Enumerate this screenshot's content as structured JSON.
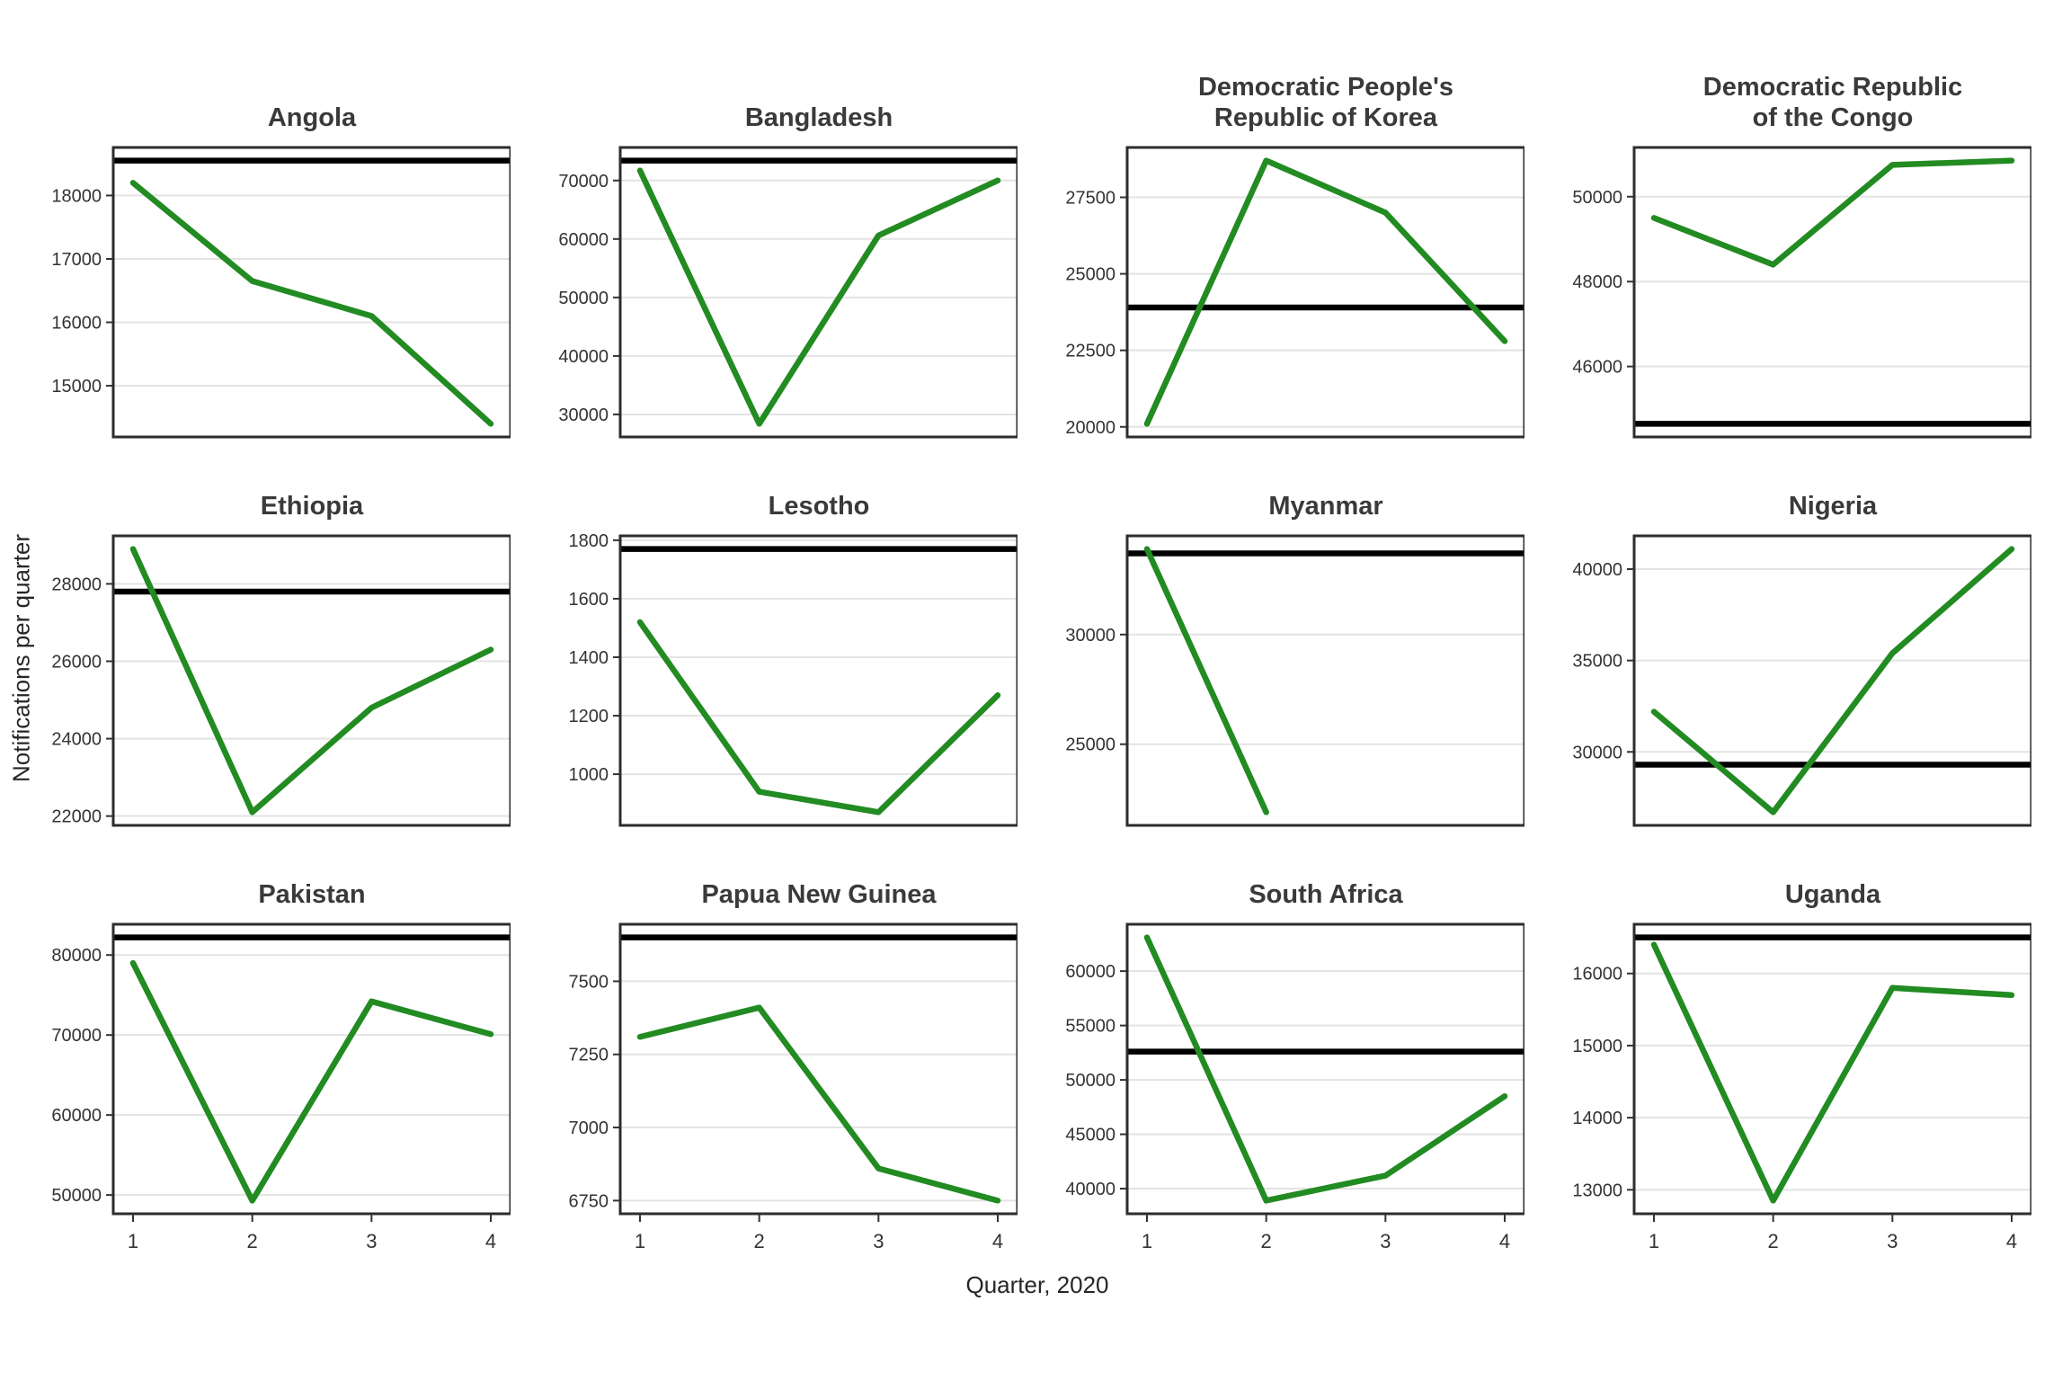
{
  "axes": {
    "x_title": "Quarter, 2020",
    "y_title": "Notifications per quarter",
    "x_ticks": [
      "1",
      "2",
      "3",
      "4"
    ]
  },
  "style": {
    "line_color": "#228B22",
    "reference_line_color": "#000000",
    "gridline_color": "#e3e3e3",
    "panel_border_color": "#2d2d2d",
    "title_color": "#3a3a3a",
    "tick_label_color": "#333333",
    "axis_title_color": "#262626",
    "background_color": "#ffffff"
  },
  "chart_data": {
    "type": "line",
    "xlabel": "Quarter, 2020",
    "ylabel": "Notifications per quarter",
    "x": [
      1,
      2,
      3,
      4
    ],
    "x_tick_labels": [
      "1",
      "2",
      "3",
      "4"
    ],
    "grid": "horizontal-only",
    "facets": [
      {
        "name": "Angola",
        "title_lines": [
          "Angola"
        ],
        "values": [
          18200,
          16650,
          16100,
          14400
        ],
        "reference": 18550,
        "y_ticks": [
          15000,
          16000,
          17000,
          18000
        ]
      },
      {
        "name": "Bangladesh",
        "title_lines": [
          "Bangladesh"
        ],
        "values": [
          71700,
          28400,
          60600,
          70000
        ],
        "reference": 73400,
        "y_ticks": [
          30000,
          40000,
          50000,
          60000,
          70000
        ]
      },
      {
        "name": "Democratic People's Republic of Korea",
        "title_lines": [
          "Democratic People's",
          "Republic of Korea"
        ],
        "values": [
          20100,
          28700,
          27000,
          22800
        ],
        "reference": 23900,
        "y_ticks": [
          20000,
          22500,
          25000,
          27500
        ]
      },
      {
        "name": "Democratic Republic of the Congo",
        "title_lines": [
          "Democratic Republic",
          "of the Congo"
        ],
        "values": [
          49500,
          48400,
          50750,
          50850
        ],
        "reference": 44650,
        "y_ticks": [
          46000,
          48000,
          50000
        ]
      },
      {
        "name": "Ethiopia",
        "title_lines": [
          "Ethiopia"
        ],
        "values": [
          28900,
          22100,
          24800,
          26300
        ],
        "reference": 27800,
        "y_ticks": [
          22000,
          24000,
          26000,
          28000
        ]
      },
      {
        "name": "Lesotho",
        "title_lines": [
          "Lesotho"
        ],
        "values": [
          1520,
          940,
          870,
          1270
        ],
        "reference": 1770,
        "y_ticks": [
          1000,
          1200,
          1400,
          1600,
          1800
        ]
      },
      {
        "name": "Myanmar",
        "title_lines": [
          "Myanmar"
        ],
        "values": [
          33900,
          21900
        ],
        "reference": 33700,
        "y_ticks": [
          25000,
          30000
        ]
      },
      {
        "name": "Nigeria",
        "title_lines": [
          "Nigeria"
        ],
        "values": [
          32200,
          26700,
          35400,
          41100
        ],
        "reference": 29300,
        "y_ticks": [
          30000,
          35000,
          40000
        ]
      },
      {
        "name": "Pakistan",
        "title_lines": [
          "Pakistan"
        ],
        "values": [
          79000,
          49300,
          74200,
          70100
        ],
        "reference": 82200,
        "y_ticks": [
          50000,
          60000,
          70000,
          80000
        ]
      },
      {
        "name": "Papua New Guinea",
        "title_lines": [
          "Papua New Guinea"
        ],
        "values": [
          7310,
          7410,
          6860,
          6750
        ],
        "reference": 7650,
        "y_ticks": [
          6750,
          7000,
          7250,
          7500
        ]
      },
      {
        "name": "South Africa",
        "title_lines": [
          "South Africa"
        ],
        "values": [
          63100,
          38900,
          41200,
          48500
        ],
        "reference": 52600,
        "y_ticks": [
          40000,
          45000,
          50000,
          55000,
          60000
        ]
      },
      {
        "name": "Uganda",
        "title_lines": [
          "Uganda"
        ],
        "values": [
          16400,
          12850,
          15800,
          15700
        ],
        "reference": 16500,
        "y_ticks": [
          13000,
          14000,
          15000,
          16000
        ]
      }
    ]
  }
}
